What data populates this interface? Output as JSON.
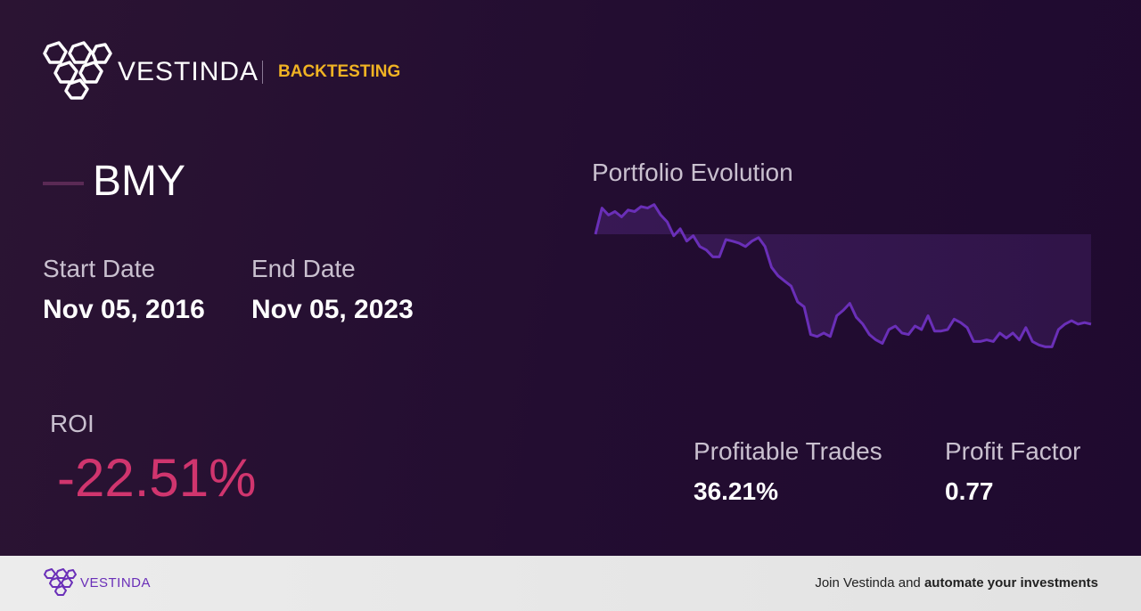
{
  "header": {
    "brand": "VESTINDA",
    "section": "BACKTESTING"
  },
  "asset": {
    "ticker": "BMY"
  },
  "dates": {
    "start_label": "Start Date",
    "start": "Nov 05, 2016",
    "end_label": "End Date",
    "end": "Nov 05, 2023"
  },
  "roi": {
    "label": "ROI",
    "value": "-22.51%"
  },
  "stats": [
    {
      "label": "Profitable Trades",
      "value": "36.21%"
    },
    {
      "label": "Profit Factor",
      "value": "0.77"
    }
  ],
  "chart_data": {
    "type": "line",
    "title": "Portfolio Evolution",
    "color": "#6a2fb8",
    "ylim": [
      71,
      109
    ],
    "values": [
      100.9,
      107.7,
      105.9,
      106.8,
      105.4,
      107.2,
      106.8,
      108.1,
      107.7,
      108.6,
      105.9,
      104.1,
      100.5,
      102.3,
      99.1,
      100.5,
      97.7,
      96.8,
      95.0,
      95.0,
      99.5,
      99.1,
      98.6,
      97.7,
      99.1,
      100.0,
      97.7,
      92.3,
      90.1,
      88.7,
      87.4,
      83.3,
      82.0,
      74.8,
      74.3,
      75.2,
      74.3,
      79.7,
      81.1,
      82.9,
      79.3,
      77.5,
      74.8,
      73.4,
      72.5,
      76.1,
      77.0,
      75.2,
      74.8,
      77.0,
      76.1,
      79.7,
      75.7,
      75.7,
      76.1,
      78.8,
      77.9,
      76.6,
      73.0,
      73.0,
      73.4,
      73.0,
      75.2,
      73.9,
      75.2,
      73.4,
      76.6,
      73.0,
      72.1,
      71.6,
      71.6,
      76.1,
      77.5,
      78.4,
      77.5,
      77.9,
      77.5
    ]
  },
  "footer": {
    "brand": "VESTINDA",
    "cta_plain": "Join Vestinda and",
    "cta_bold": "automate your investments"
  }
}
